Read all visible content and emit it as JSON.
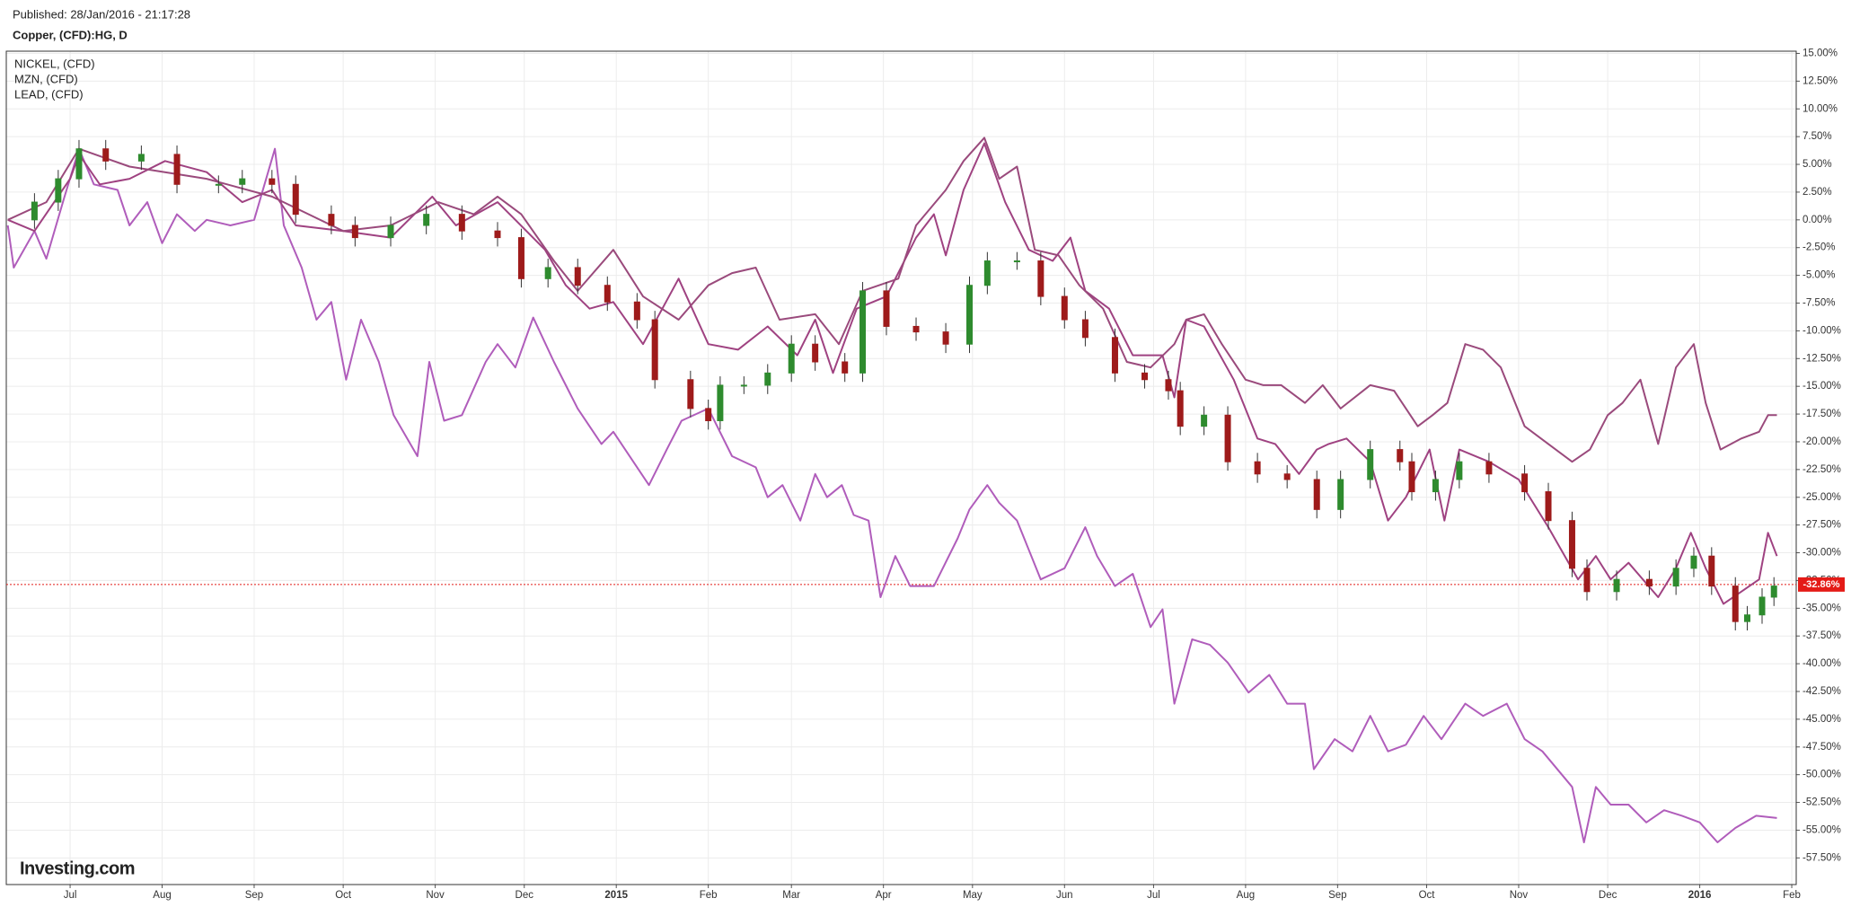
{
  "chart_data": {
    "type": "line",
    "subtitle": "Published: 28/Jan/2016 - 21:17:28",
    "title": "Copper, (CFD):HG, D",
    "brand": "Investing.com",
    "grid": true,
    "xlim": [
      -21.5,
      581.5
    ],
    "xticks": [
      {
        "value": 0,
        "label": "Jul"
      },
      {
        "value": 31,
        "label": "Aug"
      },
      {
        "value": 62,
        "label": "Sep"
      },
      {
        "value": 92,
        "label": "Oct"
      },
      {
        "value": 123,
        "label": "Nov"
      },
      {
        "value": 153,
        "label": "Dec"
      },
      {
        "value": 184,
        "label": "2015"
      },
      {
        "value": 215,
        "label": "Feb"
      },
      {
        "value": 243,
        "label": "Mar"
      },
      {
        "value": 274,
        "label": "Apr"
      },
      {
        "value": 304,
        "label": "May"
      },
      {
        "value": 335,
        "label": "Jun"
      },
      {
        "value": 365,
        "label": "Jul"
      },
      {
        "value": 396,
        "label": "Aug"
      },
      {
        "value": 427,
        "label": "Sep"
      },
      {
        "value": 457,
        "label": "Oct"
      },
      {
        "value": 488,
        "label": "Nov"
      },
      {
        "value": 518,
        "label": "Dec"
      },
      {
        "value": 549,
        "label": "2016"
      },
      {
        "value": 580,
        "label": "Feb"
      }
    ],
    "ylim": [
      -59.9,
      15.2
    ],
    "yticks": [
      {
        "value": 15,
        "label": "15.00%"
      },
      {
        "value": 12.5,
        "label": "12.50%"
      },
      {
        "value": 10,
        "label": "10.00%"
      },
      {
        "value": 7.5,
        "label": "7.50%"
      },
      {
        "value": 5,
        "label": "5.00%"
      },
      {
        "value": 2.5,
        "label": "2.50%"
      },
      {
        "value": 0,
        "label": "0.00%"
      },
      {
        "value": -2.5,
        "label": "-2.50%"
      },
      {
        "value": -5,
        "label": "-5.00%"
      },
      {
        "value": -7.5,
        "label": "-7.50%"
      },
      {
        "value": -10,
        "label": "-10.00%"
      },
      {
        "value": -12.5,
        "label": "-12.50%"
      },
      {
        "value": -15,
        "label": "-15.00%"
      },
      {
        "value": -17.5,
        "label": "-17.50%"
      },
      {
        "value": -20,
        "label": "-20.00%"
      },
      {
        "value": -22.5,
        "label": "-22.50%"
      },
      {
        "value": -25,
        "label": "-25.00%"
      },
      {
        "value": -27.5,
        "label": "-27.50%"
      },
      {
        "value": -30,
        "label": "-30.00%"
      },
      {
        "value": -32.5,
        "label": "-32.50%"
      },
      {
        "value": -35,
        "label": "-35.00%"
      },
      {
        "value": -37.5,
        "label": "-37.50%"
      },
      {
        "value": -40,
        "label": "-40.00%"
      },
      {
        "value": -42.5,
        "label": "-42.50%"
      },
      {
        "value": -45,
        "label": "-45.00%"
      },
      {
        "value": -47.5,
        "label": "-47.50%"
      },
      {
        "value": -50,
        "label": "-50.00%"
      },
      {
        "value": -52.5,
        "label": "-52.50%"
      },
      {
        "value": -55,
        "label": "-55.00%"
      },
      {
        "value": -57.5,
        "label": "-57.50%"
      }
    ],
    "current": {
      "value": -32.86,
      "label": "-32.86%",
      "color": "#e41b17"
    },
    "candles": {
      "up_color": "#2e8b2e",
      "down_color": "#9e1b1b",
      "x": [
        -12,
        -4,
        3,
        12,
        24,
        36,
        50,
        58,
        68,
        76,
        88,
        96,
        108,
        120,
        132,
        144,
        152,
        161,
        171,
        181,
        191,
        197,
        209,
        215,
        219,
        227,
        235,
        243,
        251,
        261,
        267,
        275,
        285,
        295,
        303,
        309,
        319,
        327,
        335,
        342,
        352,
        362,
        370,
        374,
        382,
        390,
        400,
        410,
        420,
        428,
        438,
        448,
        452,
        460,
        468,
        478,
        490,
        498,
        506,
        511,
        521,
        532,
        541,
        547,
        553,
        561,
        565,
        570,
        574
      ],
      "open": [
        0,
        1.6,
        3.7,
        6.4,
        5.3,
        5.9,
        3.2,
        3.2,
        3.7,
        3.2,
        0.5,
        -0.5,
        -1.6,
        -0.5,
        0.5,
        -1,
        -1.6,
        -5.3,
        -4.3,
        -5.9,
        -7.4,
        -9,
        -14.4,
        -17,
        -18.1,
        -14.9,
        -14.9,
        -13.8,
        -11.2,
        -12.8,
        -13.8,
        -6.4,
        -9.6,
        -10.1,
        -11.2,
        -5.9,
        -3.7,
        -3.7,
        -6.9,
        -9,
        -10.6,
        -13.8,
        -14.4,
        -15.4,
        -18.6,
        -17.6,
        -21.8,
        -22.9,
        -23.4,
        -26.1,
        -23.4,
        -20.7,
        -21.8,
        -24.5,
        -23.4,
        -21.8,
        -22.9,
        -24.5,
        -27.1,
        -31.4,
        -33.5,
        -32.4,
        -33,
        -31.4,
        -30.3,
        -33,
        -36.2,
        -35.6,
        -34
      ],
      "high": [
        2.4,
        4.5,
        7.2,
        7.2,
        6.7,
        6.7,
        4,
        4.5,
        4.5,
        4,
        1.3,
        0.3,
        0.3,
        1.3,
        1.3,
        -0.2,
        -0.8,
        -3.5,
        -3.5,
        -5.1,
        -6.6,
        -8.2,
        -13.6,
        -16.2,
        -14.1,
        -14.1,
        -13,
        -10.4,
        -10.4,
        -12,
        -5.6,
        -5.6,
        -8.8,
        -9.3,
        -5.1,
        -2.9,
        -2.9,
        -2.9,
        -6.1,
        -8.2,
        -9.8,
        -13,
        -13.6,
        -14.6,
        -16.8,
        -16.8,
        -21,
        -22.1,
        -22.6,
        -22.6,
        -19.9,
        -19.9,
        -21,
        -22.6,
        -21,
        -21,
        -22.1,
        -23.7,
        -26.3,
        -30.6,
        -31.6,
        -31.6,
        -30.6,
        -29.5,
        -29.5,
        -32.2,
        -34.8,
        -33.2,
        -32.2
      ],
      "low": [
        -0.8,
        0.8,
        2.9,
        4.5,
        4.5,
        2.4,
        2.4,
        2.4,
        2.4,
        -0.3,
        -1.3,
        -2.4,
        -2.4,
        -1.3,
        -1.8,
        -2.4,
        -6.1,
        -6.1,
        -6.7,
        -8.2,
        -9.8,
        -15.2,
        -17.8,
        -18.9,
        -18.9,
        -15.7,
        -15.7,
        -14.6,
        -13.6,
        -14.6,
        -14.6,
        -10.4,
        -10.9,
        -12,
        -12,
        -6.7,
        -4.5,
        -7.7,
        -9.8,
        -11.4,
        -14.6,
        -15.2,
        -16.2,
        -19.4,
        -19.4,
        -22.6,
        -23.7,
        -24.2,
        -26.9,
        -26.9,
        -24.2,
        -22.6,
        -25.3,
        -25.3,
        -24.2,
        -23.7,
        -25.3,
        -27.9,
        -32.2,
        -34.3,
        -34.3,
        -33.8,
        -33.8,
        -32.2,
        -33.8,
        -37,
        -37,
        -36.4,
        -34.8
      ],
      "close": [
        1.6,
        3.7,
        6.4,
        5.3,
        5.9,
        3.2,
        3.2,
        3.7,
        3.2,
        0.5,
        -0.5,
        -1.6,
        -0.5,
        0.5,
        -1,
        -1.6,
        -5.3,
        -4.3,
        -5.9,
        -7.4,
        -9,
        -14.4,
        -17,
        -18.1,
        -14.9,
        -14.9,
        -13.8,
        -11.2,
        -12.8,
        -13.8,
        -6.4,
        -9.6,
        -10.1,
        -11.2,
        -5.9,
        -3.7,
        -3.7,
        -6.9,
        -9,
        -10.6,
        -13.8,
        -14.4,
        -15.4,
        -18.6,
        -17.6,
        -21.8,
        -22.9,
        -23.4,
        -26.1,
        -23.4,
        -20.7,
        -21.8,
        -24.5,
        -23.4,
        -21.8,
        -22.9,
        -24.5,
        -27.1,
        -31.4,
        -33.5,
        -32.4,
        -33,
        -31.4,
        -30.3,
        -33,
        -36.2,
        -35.6,
        -34,
        -33
      ]
    },
    "series": [
      {
        "name": "NICKEL,  (CFD)",
        "color": "#b05dbb",
        "x": [
          -21,
          -19,
          -12,
          -8,
          -2,
          3,
          8,
          16,
          20,
          26,
          31,
          36,
          42,
          46,
          54,
          62,
          69,
          72,
          78,
          83,
          88,
          93,
          98,
          104,
          109,
          117,
          121,
          126,
          132,
          140,
          144,
          150,
          156,
          163,
          171,
          179,
          183,
          195,
          201,
          206,
          215,
          223,
          231,
          235,
          240,
          246,
          251,
          255,
          260,
          264,
          269,
          273,
          278,
          283,
          291,
          299,
          303,
          309,
          313,
          319,
          327,
          335,
          342,
          346,
          352,
          358,
          364,
          368,
          372,
          378,
          384,
          390,
          397,
          404,
          410,
          416,
          419,
          426,
          432,
          438,
          444,
          450,
          456,
          462,
          470,
          476,
          484,
          490,
          496,
          506,
          510,
          514,
          519,
          525,
          531,
          537,
          543,
          549,
          555,
          561,
          568,
          575
        ],
        "values": [
          -0.5,
          -4.3,
          -1,
          -3.5,
          2,
          6.4,
          3.2,
          2.7,
          -0.5,
          1.6,
          -2.1,
          0.5,
          -1,
          0,
          -0.5,
          0,
          6.4,
          -0.5,
          -4.3,
          -9,
          -7.4,
          -14.4,
          -9,
          -12.8,
          -17.6,
          -21.3,
          -12.8,
          -18.1,
          -17.6,
          -12.8,
          -11.2,
          -13.3,
          -8.8,
          -12.8,
          -17,
          -20.2,
          -19.1,
          -23.9,
          -20.7,
          -18.1,
          -17,
          -21.3,
          -22.3,
          -25,
          -23.9,
          -27.1,
          -22.9,
          -25,
          -23.9,
          -26.6,
          -27.1,
          -34,
          -30.3,
          -33,
          -33,
          -28.7,
          -26.1,
          -23.9,
          -25.5,
          -27.1,
          -32.4,
          -31.4,
          -27.7,
          -30.3,
          -33,
          -31.9,
          -36.7,
          -35.1,
          -43.6,
          -37.8,
          -38.3,
          -39.9,
          -42.6,
          -41,
          -43.6,
          -43.6,
          -49.5,
          -46.8,
          -47.9,
          -44.7,
          -47.9,
          -47.3,
          -44.7,
          -46.8,
          -43.6,
          -44.7,
          -43.6,
          -46.8,
          -47.9,
          -51.1,
          -56.1,
          -51.1,
          -52.7,
          -52.7,
          -54.3,
          -53.2,
          -53.7,
          -54.3,
          -56.1,
          -54.8,
          -53.7,
          -53.9
        ]
      },
      {
        "name": "MZN,  (CFD)",
        "color": "#9f4281",
        "x": [
          -21,
          -12,
          0,
          3,
          10,
          20,
          32,
          46,
          58,
          68,
          76,
          92,
          108,
          122,
          130,
          144,
          150,
          160,
          167,
          175,
          183,
          193,
          205,
          215,
          225,
          235,
          245,
          251,
          257,
          265,
          275,
          285,
          291,
          295,
          301,
          308,
          315,
          323,
          331,
          337,
          342,
          350,
          358,
          368,
          372,
          376,
          382,
          392,
          400,
          406,
          414,
          420,
          424,
          430,
          438,
          444,
          450,
          458,
          463,
          468,
          478,
          488,
          498,
          508,
          514,
          519,
          525,
          535,
          541,
          546,
          551,
          557,
          563,
          569,
          572,
          575
        ],
        "values": [
          0,
          -1,
          3.7,
          5.9,
          3.2,
          3.7,
          5.3,
          4.3,
          1.6,
          2.7,
          -0.5,
          -1,
          -1.6,
          2.1,
          -0.5,
          1.6,
          0,
          -2.7,
          -5.9,
          -8,
          -7.4,
          -11.2,
          -5.3,
          -11.2,
          -11.7,
          -9.6,
          -12.2,
          -9,
          -13.8,
          -8,
          -6.9,
          -1.6,
          0.5,
          -3.2,
          2.7,
          6.9,
          1.6,
          -2.7,
          -3.7,
          -1.6,
          -6.4,
          -8,
          -12.2,
          -12.2,
          -16,
          -9,
          -9.6,
          -14.4,
          -19.7,
          -20.2,
          -22.9,
          -20.7,
          -20.2,
          -19.7,
          -21.8,
          -27.1,
          -25,
          -20.7,
          -27.1,
          -20.7,
          -21.8,
          -23.4,
          -27.7,
          -32.4,
          -30.3,
          -32.4,
          -30.9,
          -34,
          -31.4,
          -28.2,
          -31.4,
          -34.6,
          -33.5,
          -32.4,
          -28.2,
          -30.3
        ]
      },
      {
        "name": "LEAD,  (CFD)",
        "color": "#9a4a7c",
        "x": [
          -21,
          -8,
          3,
          20,
          46,
          68,
          92,
          108,
          124,
          136,
          144,
          152,
          163,
          171,
          183,
          193,
          205,
          215,
          223,
          231,
          239,
          251,
          259,
          267,
          279,
          285,
          295,
          301,
          308,
          313,
          319,
          325,
          333,
          340,
          348,
          356,
          364,
          372,
          376,
          382,
          388,
          396,
          402,
          408,
          416,
          422,
          428,
          438,
          446,
          454,
          459,
          464,
          470,
          476,
          482,
          490,
          498,
          506,
          512,
          518,
          523,
          529,
          535,
          541,
          547,
          551,
          556,
          563,
          569,
          572,
          575
        ],
        "values": [
          0,
          1.6,
          6.4,
          4.8,
          3.7,
          2.1,
          -1,
          -0.5,
          1.6,
          0.5,
          2.1,
          0.5,
          -3.7,
          -6.4,
          -2.7,
          -6.9,
          -9,
          -5.9,
          -4.8,
          -4.3,
          -9,
          -8.5,
          -11.2,
          -6.4,
          -5.3,
          -0.5,
          2.7,
          5.3,
          7.4,
          3.7,
          4.8,
          -2.7,
          -3.2,
          -5.9,
          -8,
          -12.8,
          -13.3,
          -11.2,
          -9,
          -8.5,
          -11.2,
          -14.4,
          -14.9,
          -14.9,
          -16.5,
          -14.9,
          -17,
          -14.9,
          -15.4,
          -18.6,
          -17.6,
          -16.5,
          -11.2,
          -11.7,
          -13.3,
          -18.6,
          -20.2,
          -21.8,
          -20.7,
          -17.6,
          -16.5,
          -14.4,
          -20.2,
          -13.3,
          -11.2,
          -16.5,
          -20.7,
          -19.7,
          -19.1,
          -17.6,
          -17.6
        ]
      }
    ]
  }
}
